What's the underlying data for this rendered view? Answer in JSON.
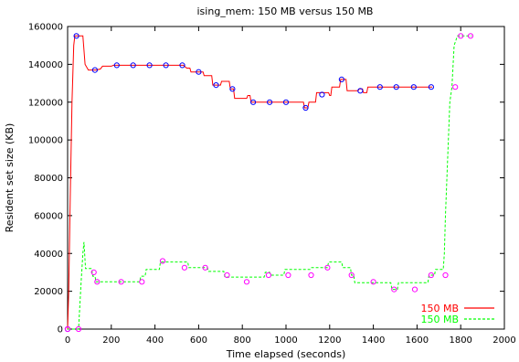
{
  "chart_data": {
    "type": "line",
    "title": "ising_mem: 150 MB versus 150 MB",
    "xlabel": "Time elapsed (seconds)",
    "ylabel": "Resident set size (KB)",
    "xlim": [
      0,
      2000
    ],
    "ylim": [
      0,
      160000
    ],
    "x_ticks": [
      0,
      200,
      400,
      600,
      800,
      1000,
      1200,
      1400,
      1600,
      1800,
      2000
    ],
    "y_ticks": [
      0,
      20000,
      40000,
      60000,
      80000,
      100000,
      120000,
      140000,
      160000
    ],
    "grid": false,
    "legend_position": "bottom-right",
    "series": [
      {
        "name": "150 MB",
        "color": "#ff0000",
        "line_style": "solid",
        "line": [
          [
            0,
            0
          ],
          [
            5,
            20000
          ],
          [
            12,
            70000
          ],
          [
            20,
            120000
          ],
          [
            28,
            150000
          ],
          [
            33,
            155000
          ],
          [
            70,
            155000
          ],
          [
            80,
            140000
          ],
          [
            95,
            137000
          ],
          [
            110,
            137000
          ],
          [
            130,
            137000
          ],
          [
            150,
            137500
          ],
          [
            160,
            139000
          ],
          [
            200,
            139000
          ],
          [
            210,
            139500
          ],
          [
            530,
            139500
          ],
          [
            545,
            138000
          ],
          [
            560,
            138000
          ],
          [
            565,
            136000
          ],
          [
            620,
            136000
          ],
          [
            625,
            134000
          ],
          [
            660,
            134000
          ],
          [
            665,
            129000
          ],
          [
            700,
            129000
          ],
          [
            705,
            131000
          ],
          [
            740,
            131000
          ],
          [
            745,
            127000
          ],
          [
            760,
            127000
          ],
          [
            765,
            122000
          ],
          [
            820,
            122000
          ],
          [
            825,
            123500
          ],
          [
            835,
            123500
          ],
          [
            840,
            120000
          ],
          [
            1080,
            120000
          ],
          [
            1085,
            117000
          ],
          [
            1100,
            117000
          ],
          [
            1105,
            120000
          ],
          [
            1135,
            120000
          ],
          [
            1140,
            125000
          ],
          [
            1195,
            125000
          ],
          [
            1200,
            123500
          ],
          [
            1205,
            123500
          ],
          [
            1210,
            128000
          ],
          [
            1245,
            128000
          ],
          [
            1250,
            132000
          ],
          [
            1275,
            132000
          ],
          [
            1280,
            126000
          ],
          [
            1330,
            126000
          ],
          [
            1335,
            127000
          ],
          [
            1350,
            127000
          ],
          [
            1355,
            125000
          ],
          [
            1370,
            125000
          ],
          [
            1375,
            128000
          ],
          [
            1670,
            128000
          ]
        ],
        "markers": [
          [
            0,
            0
          ],
          [
            40,
            155000
          ],
          [
            125,
            137000
          ],
          [
            225,
            139500
          ],
          [
            300,
            139500
          ],
          [
            375,
            139500
          ],
          [
            450,
            139500
          ],
          [
            525,
            139500
          ],
          [
            600,
            136000
          ],
          [
            680,
            129000
          ],
          [
            755,
            127000
          ],
          [
            850,
            120000
          ],
          [
            925,
            120000
          ],
          [
            1000,
            120000
          ],
          [
            1090,
            117000
          ],
          [
            1165,
            124000
          ],
          [
            1255,
            132000
          ],
          [
            1340,
            126000
          ],
          [
            1430,
            128000
          ],
          [
            1505,
            128000
          ],
          [
            1585,
            128000
          ],
          [
            1665,
            128000
          ]
        ]
      },
      {
        "name": "150 MB",
        "color": "#00ff00",
        "line_style": "dashed",
        "line": [
          [
            0,
            0
          ],
          [
            50,
            0
          ],
          [
            55,
            10000
          ],
          [
            62,
            25000
          ],
          [
            70,
            40000
          ],
          [
            75,
            46000
          ],
          [
            82,
            32000
          ],
          [
            110,
            32000
          ],
          [
            115,
            28000
          ],
          [
            125,
            28000
          ],
          [
            130,
            25000
          ],
          [
            330,
            25000
          ],
          [
            335,
            28000
          ],
          [
            355,
            28000
          ],
          [
            360,
            31500
          ],
          [
            420,
            31500
          ],
          [
            425,
            35500
          ],
          [
            550,
            35500
          ],
          [
            555,
            32500
          ],
          [
            640,
            32500
          ],
          [
            645,
            30500
          ],
          [
            715,
            30500
          ],
          [
            720,
            27500
          ],
          [
            900,
            27500
          ],
          [
            905,
            30000
          ],
          [
            925,
            30000
          ],
          [
            930,
            28500
          ],
          [
            990,
            28500
          ],
          [
            995,
            31500
          ],
          [
            1110,
            31500
          ],
          [
            1115,
            32500
          ],
          [
            1190,
            32500
          ],
          [
            1195,
            35500
          ],
          [
            1255,
            35500
          ],
          [
            1260,
            32500
          ],
          [
            1295,
            32500
          ],
          [
            1300,
            28500
          ],
          [
            1310,
            28500
          ],
          [
            1315,
            24500
          ],
          [
            1480,
            24500
          ],
          [
            1485,
            21000
          ],
          [
            1510,
            21000
          ],
          [
            1515,
            24500
          ],
          [
            1650,
            24500
          ],
          [
            1655,
            28500
          ],
          [
            1680,
            28500
          ],
          [
            1685,
            31500
          ],
          [
            1720,
            31500
          ],
          [
            1725,
            40000
          ],
          [
            1730,
            60000
          ],
          [
            1740,
            90000
          ],
          [
            1750,
            120000
          ],
          [
            1760,
            128000
          ],
          [
            1770,
            150000
          ],
          [
            1785,
            155000
          ],
          [
            1850,
            155000
          ]
        ],
        "markers": [
          [
            0,
            0
          ],
          [
            50,
            0
          ],
          [
            120,
            30000
          ],
          [
            135,
            25000
          ],
          [
            245,
            25000
          ],
          [
            340,
            25000
          ],
          [
            435,
            36000
          ],
          [
            535,
            32500
          ],
          [
            630,
            32500
          ],
          [
            730,
            28500
          ],
          [
            820,
            25000
          ],
          [
            920,
            28500
          ],
          [
            1010,
            28500
          ],
          [
            1115,
            28500
          ],
          [
            1190,
            32500
          ],
          [
            1300,
            28500
          ],
          [
            1400,
            25000
          ],
          [
            1495,
            21000
          ],
          [
            1590,
            21000
          ],
          [
            1665,
            28500
          ],
          [
            1730,
            28500
          ],
          [
            1775,
            128000
          ],
          [
            1800,
            155000
          ],
          [
            1845,
            155000
          ]
        ]
      }
    ]
  }
}
